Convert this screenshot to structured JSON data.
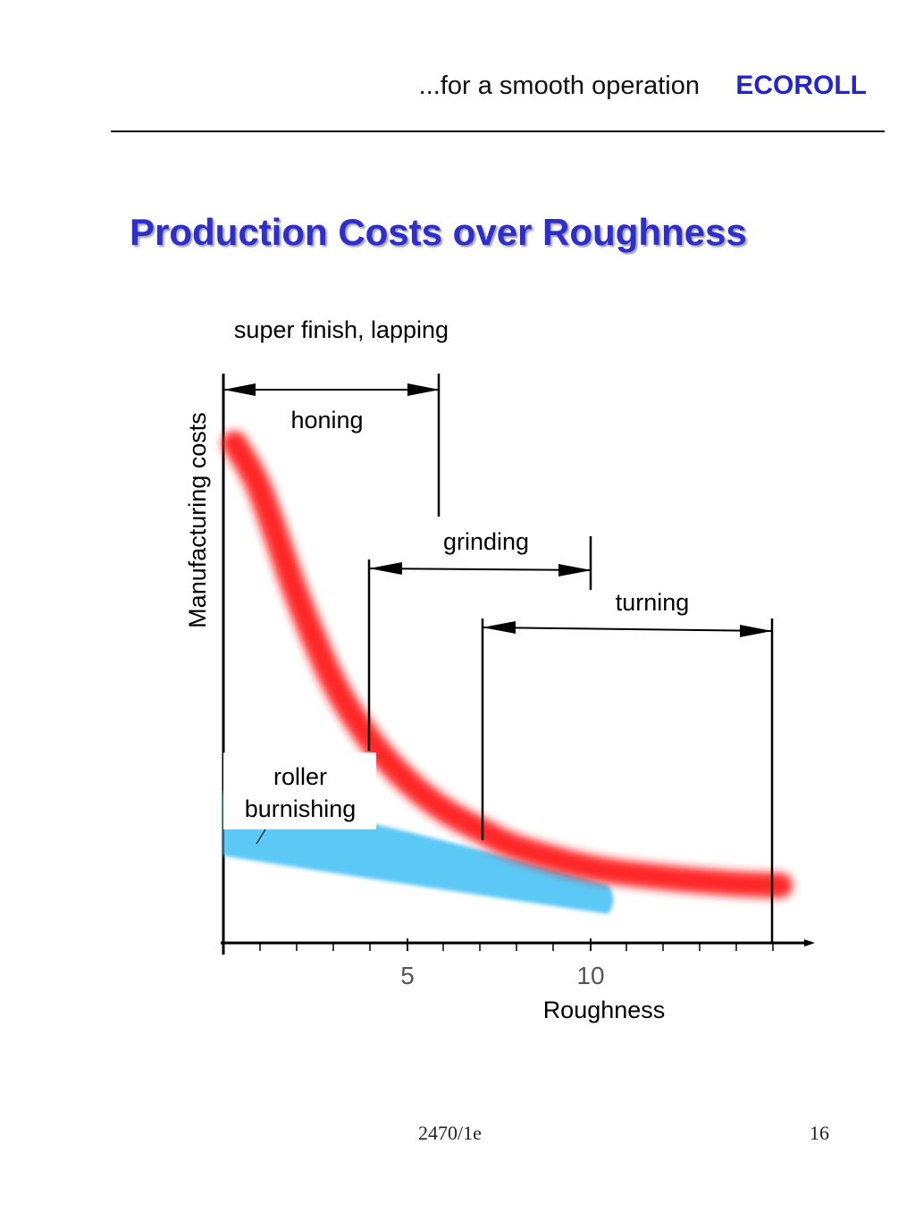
{
  "header": {
    "tagline": "...for a smooth operation",
    "brand": "ECOROLL"
  },
  "title": "Production Costs over Roughness",
  "footer": {
    "code": "2470/1e",
    "page": "16"
  },
  "colors": {
    "title": "#2e2ecc",
    "brand": "#2424c8",
    "cost_curve": "#ff1a1a",
    "burnishing_band": "#5cc8f5"
  },
  "chart_data": {
    "type": "line",
    "title": "Production Costs over Roughness",
    "xlabel": "Roughness",
    "ylabel": "Manufacturing costs",
    "x_ticks": [
      "5",
      "10"
    ],
    "xlim": [
      0,
      16
    ],
    "grid": false,
    "series": [
      {
        "id": "conventional",
        "color": "#ff1a1a",
        "x": [
          0.3,
          1,
          2,
          3,
          4,
          5,
          6,
          7,
          8,
          10,
          12,
          14,
          15.2
        ],
        "y": [
          86,
          78,
          60,
          45,
          35,
          28,
          23,
          19.5,
          16.5,
          13,
          11.3,
          10.2,
          9.9
        ]
      }
    ],
    "bands": [
      {
        "label": "roller burnishing",
        "color": "#5cc8f5",
        "x": [
          0,
          5,
          10.5
        ],
        "y_top": [
          26,
          20,
          10
        ],
        "y_bottom": [
          15,
          10,
          5
        ]
      }
    ],
    "ranges": [
      {
        "label": "super finish, lapping",
        "x_from": 0,
        "x_to": 5.8
      },
      {
        "label": "honing",
        "x_from": 0,
        "x_to": 5.8
      },
      {
        "label": "grinding",
        "x_from": 4.0,
        "x_to": 10.0
      },
      {
        "label": "turning",
        "x_from": 7.1,
        "x_to": 15
      }
    ]
  }
}
